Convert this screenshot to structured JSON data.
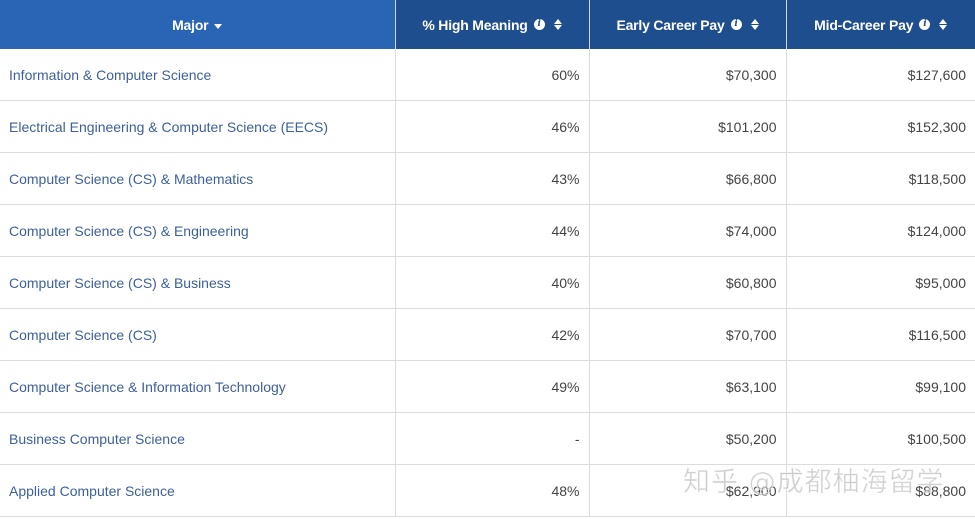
{
  "table": {
    "columns": [
      {
        "label": "Major",
        "sort": "desc-active",
        "info": false
      },
      {
        "label": "% High Meaning",
        "sort": "both",
        "info": true
      },
      {
        "label": "Early Career Pay",
        "sort": "both",
        "info": true
      },
      {
        "label": "Mid-Career Pay",
        "sort": "both",
        "info": true
      }
    ],
    "rows": [
      {
        "major": "Information & Computer Science",
        "meaning": "60%",
        "early": "$70,300",
        "mid": "$127,600"
      },
      {
        "major": "Electrical Engineering & Computer Science (EECS)",
        "meaning": "46%",
        "early": "$101,200",
        "mid": "$152,300"
      },
      {
        "major": "Computer Science (CS) & Mathematics",
        "meaning": "43%",
        "early": "$66,800",
        "mid": "$118,500"
      },
      {
        "major": "Computer Science (CS) & Engineering",
        "meaning": "44%",
        "early": "$74,000",
        "mid": "$124,000"
      },
      {
        "major": "Computer Science (CS) & Business",
        "meaning": "40%",
        "early": "$60,800",
        "mid": "$95,000"
      },
      {
        "major": "Computer Science (CS)",
        "meaning": "42%",
        "early": "$70,700",
        "mid": "$116,500"
      },
      {
        "major": "Computer Science & Information Technology",
        "meaning": "49%",
        "early": "$63,100",
        "mid": "$99,100"
      },
      {
        "major": "Business Computer Science",
        "meaning": "-",
        "early": "$50,200",
        "mid": "$100,500"
      },
      {
        "major": "Applied Computer Science",
        "meaning": "48%",
        "early": "$62,900",
        "mid": "$88,800"
      }
    ]
  },
  "colors": {
    "header_bg": "#1f4e8f",
    "header_active_bg": "#2a64b5",
    "header_text": "#ffffff",
    "major_text": "#3d5f9a",
    "cell_text": "#444444",
    "row_border": "#dcdcdc"
  },
  "icons": {
    "info": "info-circle-icon",
    "sort": "sort-both-icon",
    "sorted": "caret-down-icon"
  },
  "watermark": "知乎 @成都柚海留学"
}
